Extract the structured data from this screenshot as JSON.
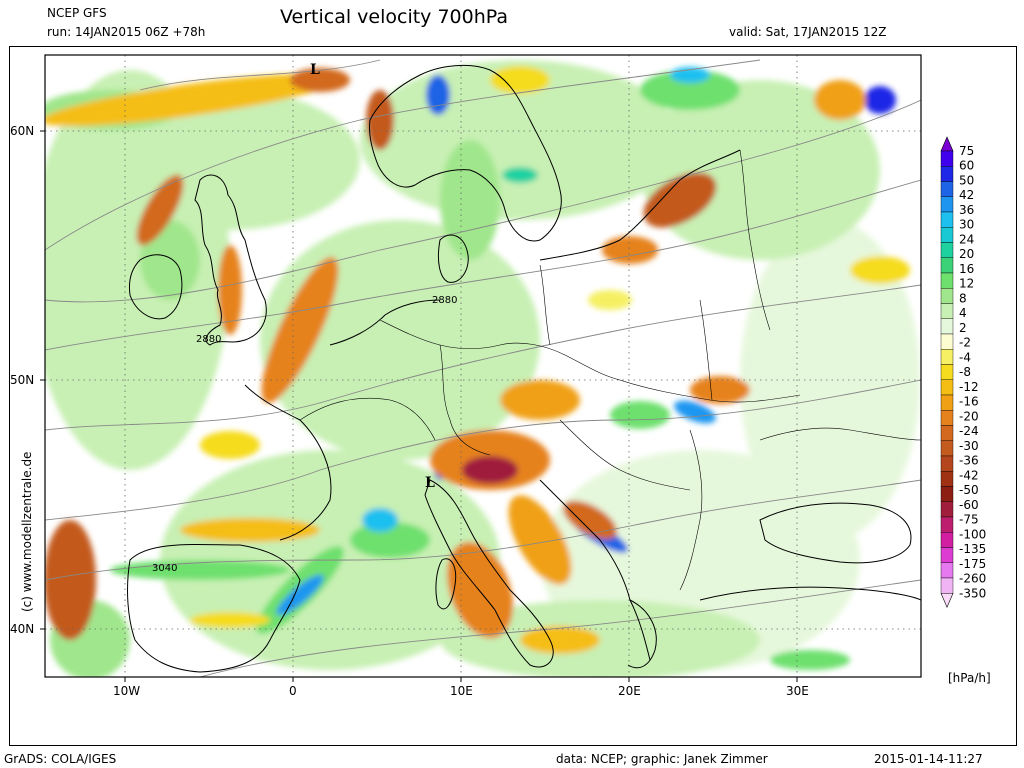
{
  "header": {
    "model": "NCEP GFS",
    "run": "run: 14JAN2015 06Z +78h",
    "title": "Vertical velocity 700hPa",
    "valid": "valid: Sat, 17JAN2015 12Z"
  },
  "footer": {
    "software": "GrADS: COLA/IGES",
    "credit": "data: NCEP; graphic: Janek Zimmer",
    "timestamp": "2015-01-14-11:27"
  },
  "watermark": "(c)  www.modellzentrale.de",
  "axes": {
    "lat_labels": [
      "60N",
      "50N",
      "40N"
    ],
    "lon_labels": [
      "10W",
      "0",
      "10E",
      "20E",
      "30E"
    ]
  },
  "map_labels": {
    "low_markers": [
      "L",
      "L"
    ],
    "contours": [
      "2880",
      "2880",
      "3040"
    ]
  },
  "legend": {
    "unit": "[hPa/h]",
    "items": [
      {
        "label": "75",
        "color": "#7a00d6"
      },
      {
        "label": "60",
        "color": "#4000ee"
      },
      {
        "label": "50",
        "color": "#1e28e6"
      },
      {
        "label": "42",
        "color": "#1e64e6"
      },
      {
        "label": "36",
        "color": "#1e96f0"
      },
      {
        "label": "30",
        "color": "#1ec0f0"
      },
      {
        "label": "24",
        "color": "#18c8d2"
      },
      {
        "label": "20",
        "color": "#1ed2a0"
      },
      {
        "label": "16",
        "color": "#3cd278"
      },
      {
        "label": "12",
        "color": "#6ee06e"
      },
      {
        "label": "8",
        "color": "#a0e68c"
      },
      {
        "label": "4",
        "color": "#c8f0b4"
      },
      {
        "label": "2",
        "color": "#e6f8dc"
      },
      {
        "label": "-2",
        "color": "#fdfdd2"
      },
      {
        "label": "-4",
        "color": "#f5f064"
      },
      {
        "label": "-8",
        "color": "#f5dc1e"
      },
      {
        "label": "-12",
        "color": "#f5be14"
      },
      {
        "label": "-16",
        "color": "#f0a014"
      },
      {
        "label": "-20",
        "color": "#e6821e"
      },
      {
        "label": "-24",
        "color": "#d2691e"
      },
      {
        "label": "-30",
        "color": "#c35a1e"
      },
      {
        "label": "-36",
        "color": "#b4461e"
      },
      {
        "label": "-42",
        "color": "#a03214"
      },
      {
        "label": "-50",
        "color": "#8c1e14"
      },
      {
        "label": "-60",
        "color": "#a01e3c"
      },
      {
        "label": "-75",
        "color": "#be1e6e"
      },
      {
        "label": "-100",
        "color": "#d21ea0"
      },
      {
        "label": "-135",
        "color": "#dc3cd2"
      },
      {
        "label": "-175",
        "color": "#e678f0"
      },
      {
        "label": "-260",
        "color": "#f0b4f5"
      },
      {
        "label": "-350",
        "color": "#fadcfa"
      }
    ]
  }
}
